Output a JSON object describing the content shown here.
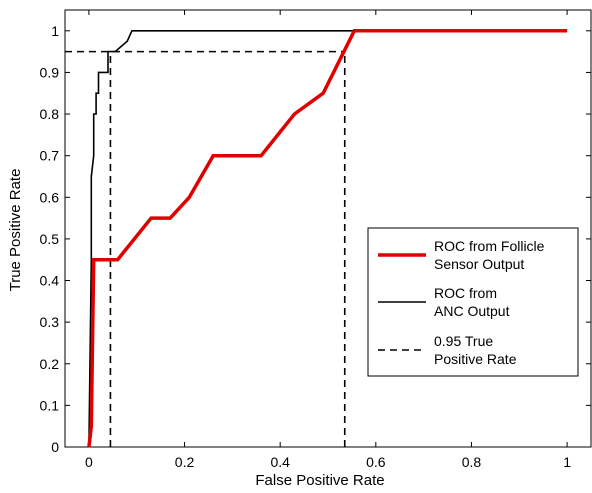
{
  "chart_data": {
    "type": "line",
    "title": "",
    "xlabel": "False Positive Rate",
    "ylabel": "True Positive Rate",
    "xlim": [
      -0.05,
      1.05
    ],
    "ylim": [
      0,
      1.05
    ],
    "xticks": [
      0,
      0.2,
      0.4,
      0.6,
      0.8,
      1
    ],
    "xtick_labels": [
      "0",
      "0.2",
      "0.4",
      "0.6",
      "0.8",
      "1"
    ],
    "yticks": [
      0,
      0.1,
      0.2,
      0.3,
      0.4,
      0.5,
      0.6,
      0.7,
      0.8,
      0.9,
      1
    ],
    "ytick_labels": [
      "0",
      "0.1",
      "0.2",
      "0.3",
      "0.4",
      "0.5",
      "0.6",
      "0.7",
      "0.8",
      "0.9",
      "1"
    ],
    "grid": false,
    "legend_position": "center-right",
    "series": [
      {
        "name": "ROC from Follicle Sensor Output",
        "legend_lines": [
          "ROC from Follicle",
          "Sensor Output"
        ],
        "color": "#e00000",
        "style": "solid-thick",
        "x": [
          0,
          0.005,
          0.01,
          0.06,
          0.13,
          0.17,
          0.21,
          0.26,
          0.36,
          0.43,
          0.49,
          0.555,
          1.0
        ],
        "y": [
          0,
          0.05,
          0.45,
          0.45,
          0.55,
          0.55,
          0.6,
          0.7,
          0.7,
          0.8,
          0.85,
          1.0,
          1.0
        ]
      },
      {
        "name": "ROC from ANC Output",
        "legend_lines": [
          "ROC from",
          "ANC Output"
        ],
        "color": "#000000",
        "style": "solid-thin",
        "x": [
          0,
          0.005,
          0.005,
          0.01,
          0.01,
          0.015,
          0.015,
          0.02,
          0.02,
          0.025,
          0.025,
          0.03,
          0.04,
          0.04,
          0.045,
          0.045,
          0.055,
          0.08,
          0.08,
          0.09,
          0.1,
          1.0
        ],
        "y": [
          0,
          0.45,
          0.65,
          0.7,
          0.8,
          0.8,
          0.85,
          0.85,
          0.9,
          0.9,
          0.9,
          0.9,
          0.9,
          0.95,
          0.95,
          0.95,
          0.95,
          0.975,
          0.975,
          1.0,
          1.0,
          1.0
        ]
      },
      {
        "name": "0.95 True Positive Rate",
        "legend_lines": [
          "0.95 True",
          "Positive Rate"
        ],
        "color": "#000000",
        "style": "dashed",
        "segments": [
          {
            "x": [
              -0.05,
              0.535
            ],
            "y": [
              0.95,
              0.95
            ]
          },
          {
            "x": [
              0.045,
              0.045
            ],
            "y": [
              0,
              0.95
            ]
          },
          {
            "x": [
              0.535,
              0.535
            ],
            "y": [
              0,
              0.95
            ]
          }
        ]
      }
    ]
  }
}
